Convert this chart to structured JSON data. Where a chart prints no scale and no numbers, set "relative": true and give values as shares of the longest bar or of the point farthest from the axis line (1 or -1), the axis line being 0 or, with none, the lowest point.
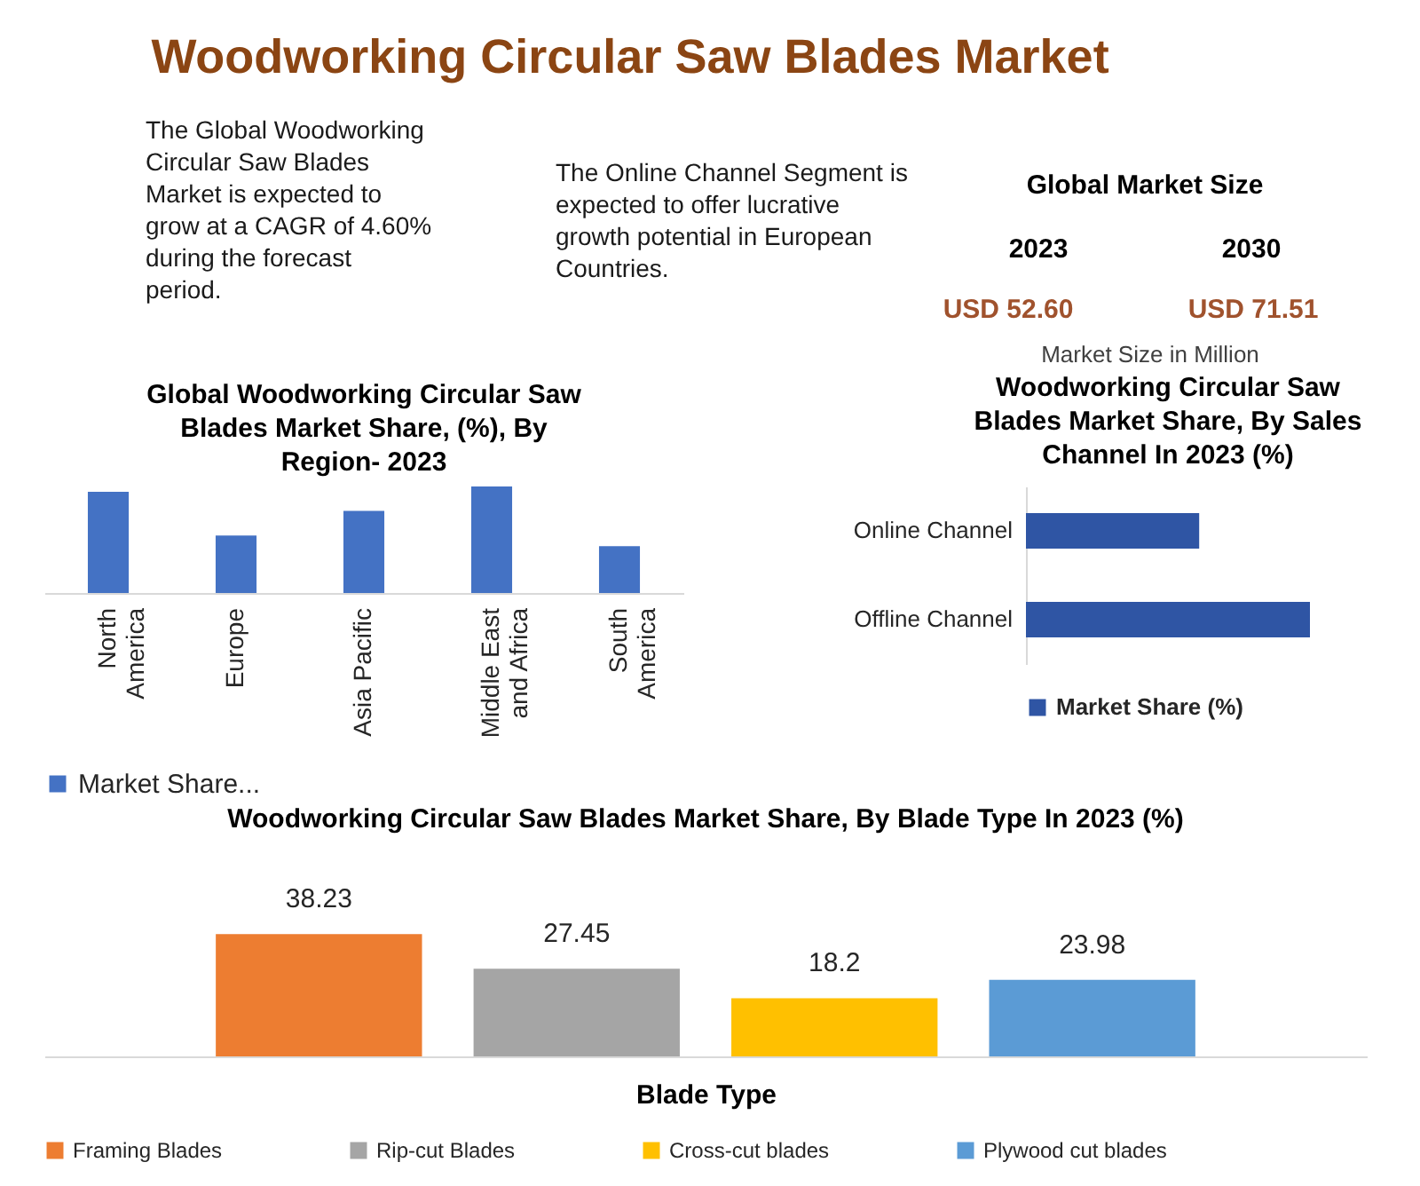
{
  "chart_data": [
    {
      "type": "other",
      "title": "Woodworking Circular Saw Blades Market",
      "annotations": [
        "The Global Woodworking Circular Saw Blades Market is expected to grow at a CAGR of 4.60% during the forecast period.",
        "The Online Channel Segment is expected to offer lucrative growth potential in European Countries.",
        "Global Market Size",
        "2023",
        "2030",
        "USD 52.60",
        "USD 71.51",
        "Market Size in Million"
      ]
    },
    {
      "type": "bar",
      "title": "Global Woodworking Circular Saw Blades Market Share, (%), By Region- 2023",
      "categories": [
        "North America",
        "Europe",
        "Asia Pacific",
        "Middle East and Africa",
        "South America"
      ],
      "series": [
        {
          "name": "Market Share...",
          "color": "#4472c4",
          "values": [
            0.95,
            0.54,
            0.77,
            1,
            0.44
          ]
        }
      ],
      "relative": true,
      "legend": "bottom"
    },
    {
      "type": "bar",
      "orientation": "horizontal",
      "title": "Woodworking Circular Saw Blades Market Share, By Sales Channel In 2023 (%)",
      "categories": [
        "Online Channel",
        "Offline Channel"
      ],
      "series": [
        {
          "name": "Market Share (%)",
          "color": "#2f55a4",
          "values": [
            0.61,
            1
          ]
        }
      ],
      "relative": true,
      "legend": "bottom"
    },
    {
      "type": "bar",
      "title": "Woodworking Circular Saw Blades Market Share, By Blade Type In 2023 (%)",
      "xlabel": "Blade Type",
      "categories": [
        null
      ],
      "series": [
        {
          "name": "Framing Blades",
          "color": "#ed7d31",
          "values": [
            38.23
          ]
        },
        {
          "name": "Rip-cut Blades",
          "color": "#a5a5a5",
          "values": [
            27.45
          ]
        },
        {
          "name": "Cross-cut blades",
          "color": "#ffc000",
          "values": [
            18.2
          ]
        },
        {
          "name": "Plywood cut blades",
          "color": "#5b9bd5",
          "values": [
            23.98
          ]
        }
      ],
      "data_labels": true,
      "legend": "bottom"
    }
  ]
}
